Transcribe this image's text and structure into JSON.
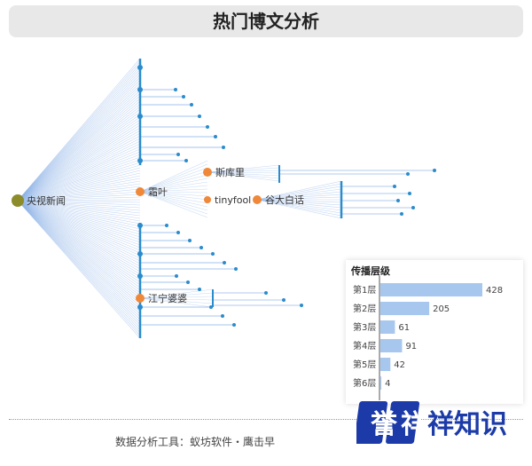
{
  "title": "热门博文分析",
  "nodes": {
    "root": "央视新闻",
    "n1": "霜叶",
    "n2": "斯库里",
    "n3": "tinyfool",
    "n4": "谷大白话",
    "n5": "江宁婆婆"
  },
  "chart_data": {
    "type": "bar",
    "title": "传播层级",
    "categories": [
      "第1层",
      "第2层",
      "第3层",
      "第4层",
      "第5层",
      "第6层"
    ],
    "values": [
      428,
      205,
      61,
      91,
      42,
      4
    ]
  },
  "footer": {
    "text": "数据分析工具：蚁坊软件・鹰击早"
  },
  "brand": {
    "text": "誉 祥 祥知识"
  },
  "colors": {
    "edge": "#8fb5e8",
    "node_blue": "#2a8ccd",
    "node_orange": "#f0883a",
    "node_root": "#8c8c2a",
    "bar": "#a7c7ee",
    "brand_blue": "#1c3ba8"
  }
}
